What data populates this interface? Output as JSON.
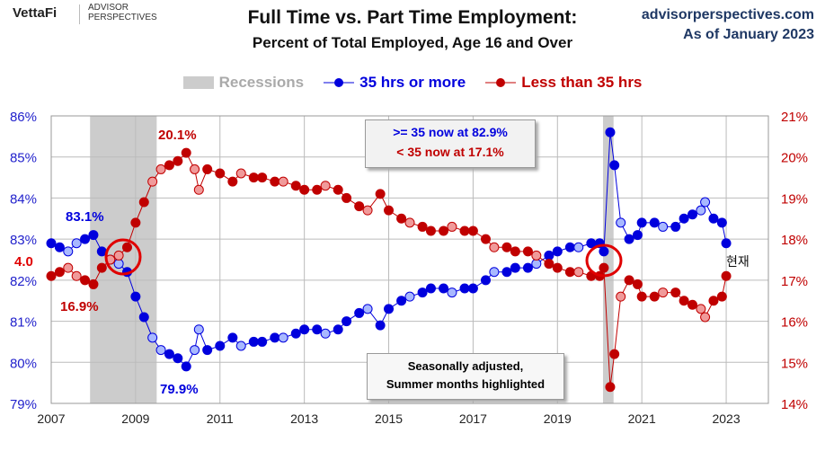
{
  "header": {
    "logo_brand": "VettaFi",
    "logo_sub1": "ADVISOR",
    "logo_sub2": "PERSPECTIVES",
    "site": "advisorperspectives.com",
    "as_of": "As of January 2023"
  },
  "chart_data": {
    "type": "line",
    "title": "Full Time vs. Part Time Employment:",
    "subtitle": "Percent of Total Employed, Age 16 and Over",
    "legend": [
      "Recessions",
      "35 hrs or more",
      "Less than 35 hrs"
    ],
    "legend_placement": "top-center",
    "colors": {
      "full": "#0000dd",
      "part": "#c00000",
      "recession": "#cccccc"
    },
    "x_ticks": [
      "2007",
      "2009",
      "2011",
      "2013",
      "2015",
      "2017",
      "2019",
      "2021",
      "2023"
    ],
    "xlim": [
      2007,
      2024
    ],
    "y_left": {
      "ticks": [
        "86%",
        "85%",
        "84%",
        "83%",
        "82%",
        "81%",
        "80%",
        "79%"
      ],
      "ylim": [
        79,
        86
      ]
    },
    "y_right": {
      "ticks": [
        "21%",
        "20%",
        "19%",
        "18%",
        "17%",
        "16%",
        "15%",
        "14%"
      ],
      "ylim": [
        14,
        21
      ]
    },
    "recessions": [
      [
        2007.92,
        2009.5
      ],
      [
        2020.08,
        2020.33
      ]
    ],
    "x": [
      2007.0,
      2007.2,
      2007.4,
      2007.6,
      2007.8,
      2008.0,
      2008.2,
      2008.4,
      2008.6,
      2008.8,
      2009.0,
      2009.2,
      2009.4,
      2009.6,
      2009.8,
      2010.0,
      2010.2,
      2010.4,
      2010.5,
      2010.7,
      2011.0,
      2011.3,
      2011.5,
      2011.8,
      2012.0,
      2012.3,
      2012.5,
      2012.8,
      2013.0,
      2013.3,
      2013.5,
      2013.8,
      2014.0,
      2014.3,
      2014.5,
      2014.8,
      2015.0,
      2015.3,
      2015.5,
      2015.8,
      2016.0,
      2016.3,
      2016.5,
      2016.8,
      2017.0,
      2017.3,
      2017.5,
      2017.8,
      2018.0,
      2018.3,
      2018.5,
      2018.8,
      2019.0,
      2019.3,
      2019.5,
      2019.8,
      2020.0,
      2020.1,
      2020.25,
      2020.35,
      2020.5,
      2020.7,
      2020.9,
      2021.0,
      2021.3,
      2021.5,
      2021.8,
      2022.0,
      2022.2,
      2022.4,
      2022.5,
      2022.7,
      2022.9,
      2023.0
    ],
    "series": [
      {
        "name": "35 hrs or more",
        "values": [
          82.9,
          82.8,
          82.7,
          82.9,
          83.0,
          83.1,
          82.7,
          82.5,
          82.4,
          82.2,
          81.6,
          81.1,
          80.6,
          80.3,
          80.2,
          80.1,
          79.9,
          80.3,
          80.8,
          80.3,
          80.4,
          80.6,
          80.4,
          80.5,
          80.5,
          80.6,
          80.6,
          80.7,
          80.8,
          80.8,
          80.7,
          80.8,
          81.0,
          81.2,
          81.3,
          80.9,
          81.3,
          81.5,
          81.6,
          81.7,
          81.8,
          81.8,
          81.7,
          81.8,
          81.8,
          82.0,
          82.2,
          82.2,
          82.3,
          82.3,
          82.4,
          82.6,
          82.7,
          82.8,
          82.8,
          82.9,
          82.9,
          82.7,
          85.6,
          84.8,
          83.4,
          83.0,
          83.1,
          83.4,
          83.4,
          83.3,
          83.3,
          83.5,
          83.6,
          83.7,
          83.9,
          83.5,
          83.4,
          82.9
        ]
      },
      {
        "name": "Less than 35 hrs",
        "values": [
          17.1,
          17.2,
          17.3,
          17.1,
          17.0,
          16.9,
          17.3,
          17.5,
          17.6,
          17.8,
          18.4,
          18.9,
          19.4,
          19.7,
          19.8,
          19.9,
          20.1,
          19.7,
          19.2,
          19.7,
          19.6,
          19.4,
          19.6,
          19.5,
          19.5,
          19.4,
          19.4,
          19.3,
          19.2,
          19.2,
          19.3,
          19.2,
          19.0,
          18.8,
          18.7,
          19.1,
          18.7,
          18.5,
          18.4,
          18.3,
          18.2,
          18.2,
          18.3,
          18.2,
          18.2,
          18.0,
          17.8,
          17.8,
          17.7,
          17.7,
          17.6,
          17.4,
          17.3,
          17.2,
          17.2,
          17.1,
          17.1,
          17.3,
          14.4,
          15.2,
          16.6,
          17.0,
          16.9,
          16.6,
          16.6,
          16.7,
          16.7,
          16.5,
          16.4,
          16.3,
          16.1,
          16.5,
          16.6,
          17.1
        ]
      }
    ],
    "annotations": {
      "full_peak": "83.1%",
      "full_low": "79.9%",
      "part_peak": "20.1%",
      "part_low": "16.9%",
      "now_box1": ">= 35 now at 82.9%",
      "now_box2": "< 35 now at 17.1%",
      "note1": "Seasonally adjusted,",
      "note2": "Summer months highlighted",
      "now_label": "현재",
      "left_mark": "4.0"
    }
  }
}
